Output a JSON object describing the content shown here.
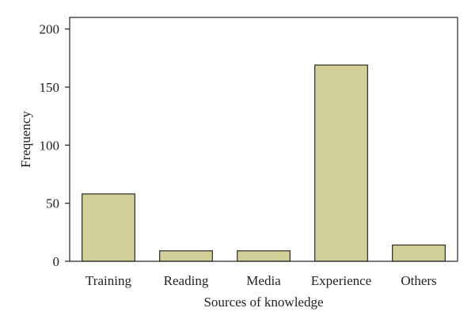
{
  "chart_data": {
    "type": "bar",
    "categories": [
      "Training",
      "Reading",
      "Media",
      "Experience",
      "Others"
    ],
    "values": [
      58,
      9,
      9,
      169,
      14
    ],
    "title": "",
    "xlabel": "Sources of knowledge",
    "ylabel": "Frequency",
    "ylim": [
      0,
      210
    ],
    "yticks": [
      0,
      50,
      100,
      150,
      200
    ],
    "grid": false,
    "legend": "none",
    "bar_color": "#d3cf98",
    "bar_edge_color": "#2a2a22"
  }
}
